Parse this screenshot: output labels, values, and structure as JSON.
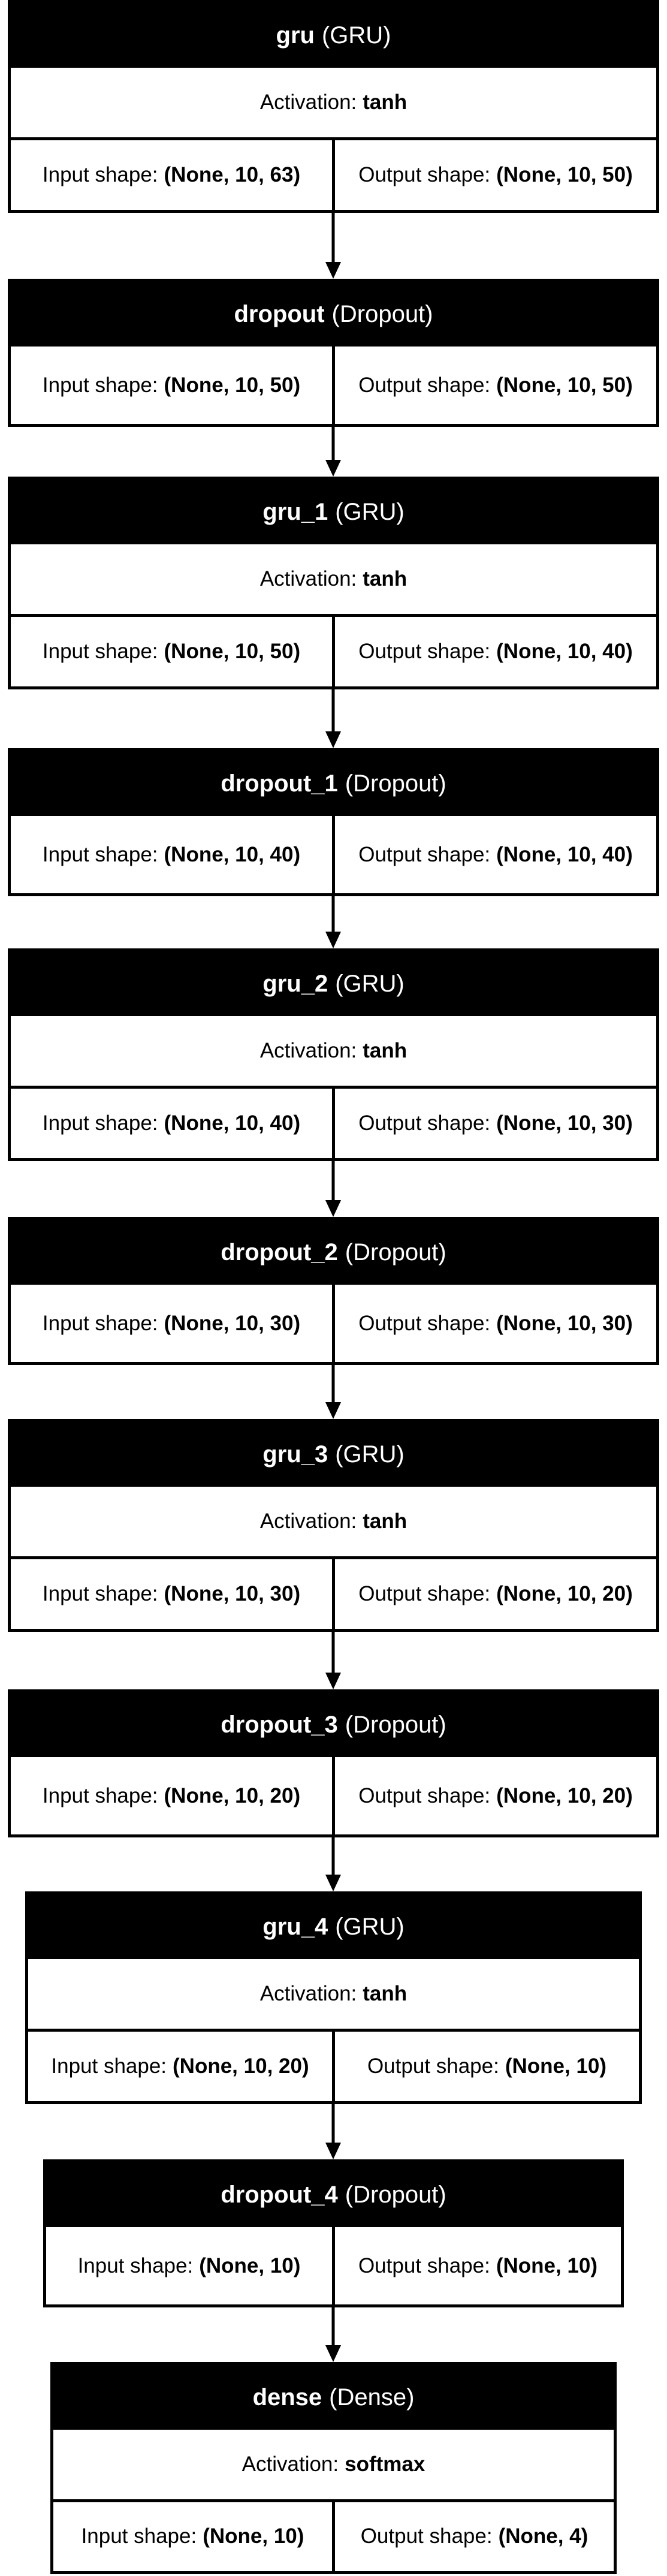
{
  "labels": {
    "activation_prefix": "Activation:",
    "input_prefix": "Input shape:",
    "output_prefix": "Output shape:"
  },
  "nodes": [
    {
      "name": "gru",
      "type": "(GRU)",
      "activation": "tanh",
      "input_shape": "(None, 10, 63)",
      "output_shape": "(None, 10, 50)"
    },
    {
      "name": "dropout",
      "type": "(Dropout)",
      "input_shape": "(None, 10, 50)",
      "output_shape": "(None, 10, 50)"
    },
    {
      "name": "gru_1",
      "type": "(GRU)",
      "activation": "tanh",
      "input_shape": "(None, 10, 50)",
      "output_shape": "(None, 10, 40)"
    },
    {
      "name": "dropout_1",
      "type": "(Dropout)",
      "input_shape": "(None, 10, 40)",
      "output_shape": "(None, 10, 40)"
    },
    {
      "name": "gru_2",
      "type": "(GRU)",
      "activation": "tanh",
      "input_shape": "(None, 10, 40)",
      "output_shape": "(None, 10, 30)"
    },
    {
      "name": "dropout_2",
      "type": "(Dropout)",
      "input_shape": "(None, 10, 30)",
      "output_shape": "(None, 10, 30)"
    },
    {
      "name": "gru_3",
      "type": "(GRU)",
      "activation": "tanh",
      "input_shape": "(None, 10, 30)",
      "output_shape": "(None, 10, 20)"
    },
    {
      "name": "dropout_3",
      "type": "(Dropout)",
      "input_shape": "(None, 10, 20)",
      "output_shape": "(None, 10, 20)"
    },
    {
      "name": "gru_4",
      "type": "(GRU)",
      "activation": "tanh",
      "input_shape": "(None, 10, 20)",
      "output_shape": "(None, 10)"
    },
    {
      "name": "dropout_4",
      "type": "(Dropout)",
      "input_shape": "(None, 10)",
      "output_shape": "(None, 10)"
    },
    {
      "name": "dense",
      "type": "(Dense)",
      "activation": "softmax",
      "input_shape": "(None, 10)",
      "output_shape": "(None, 4)"
    }
  ]
}
